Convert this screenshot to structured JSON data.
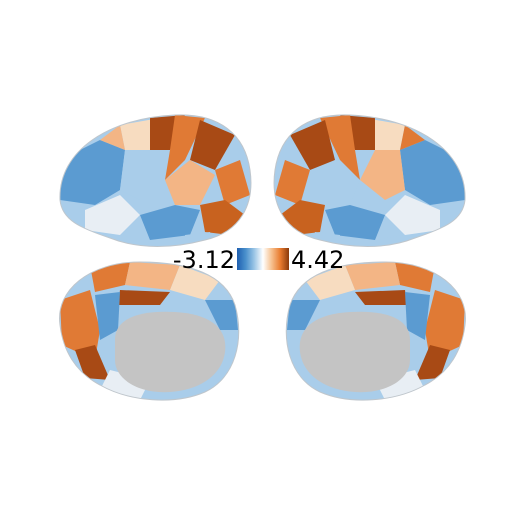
{
  "colorbar": {
    "min_label": "-3.12",
    "max_label": "4.42",
    "min_value": -3.12,
    "max_value": 4.42,
    "stops": [
      "#1f5fb0",
      "#4a90cc",
      "#9cc6e6",
      "#ffffff",
      "#f6c08e",
      "#e87a2e",
      "#8a3a0c"
    ]
  },
  "colors": {
    "medial_wall": "#c4c4c4",
    "dark_orange": "#a84a15",
    "orange": "#e07a35",
    "light_orange": "#f3b585",
    "peach": "#f7dcc0",
    "light_blue": "#a9cdea",
    "mid_blue": "#5b9bd1",
    "pale": "#e8eef4"
  },
  "views": [
    {
      "view": "left-lateral"
    },
    {
      "view": "right-lateral"
    },
    {
      "view": "left-medial"
    },
    {
      "view": "right-medial"
    }
  ]
}
